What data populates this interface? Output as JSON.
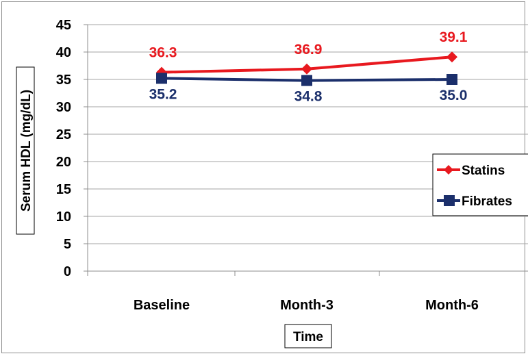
{
  "chart_data": {
    "type": "line",
    "categories": [
      "Baseline",
      "Month-3",
      "Month-6"
    ],
    "series": [
      {
        "name": "Statins",
        "values": [
          36.3,
          36.9,
          39.1
        ],
        "color": "#e8191f",
        "marker": "diamond"
      },
      {
        "name": "Fibrates",
        "values": [
          35.2,
          34.8,
          35.0
        ],
        "color": "#1b2f6b",
        "marker": "square"
      }
    ],
    "data_labels": {
      "Statins": [
        "36.3",
        "36.9",
        "39.1"
      ],
      "Fibrates": [
        "35.2",
        "34.8",
        "35.0"
      ]
    },
    "xlabel": "Time",
    "ylabel": "Serum HDL (mg/dL)",
    "ylim": [
      0,
      45
    ],
    "yticks": [
      "0",
      "5",
      "10",
      "15",
      "20",
      "25",
      "30",
      "35",
      "40",
      "45"
    ],
    "grid": true,
    "legend_position": "right"
  }
}
